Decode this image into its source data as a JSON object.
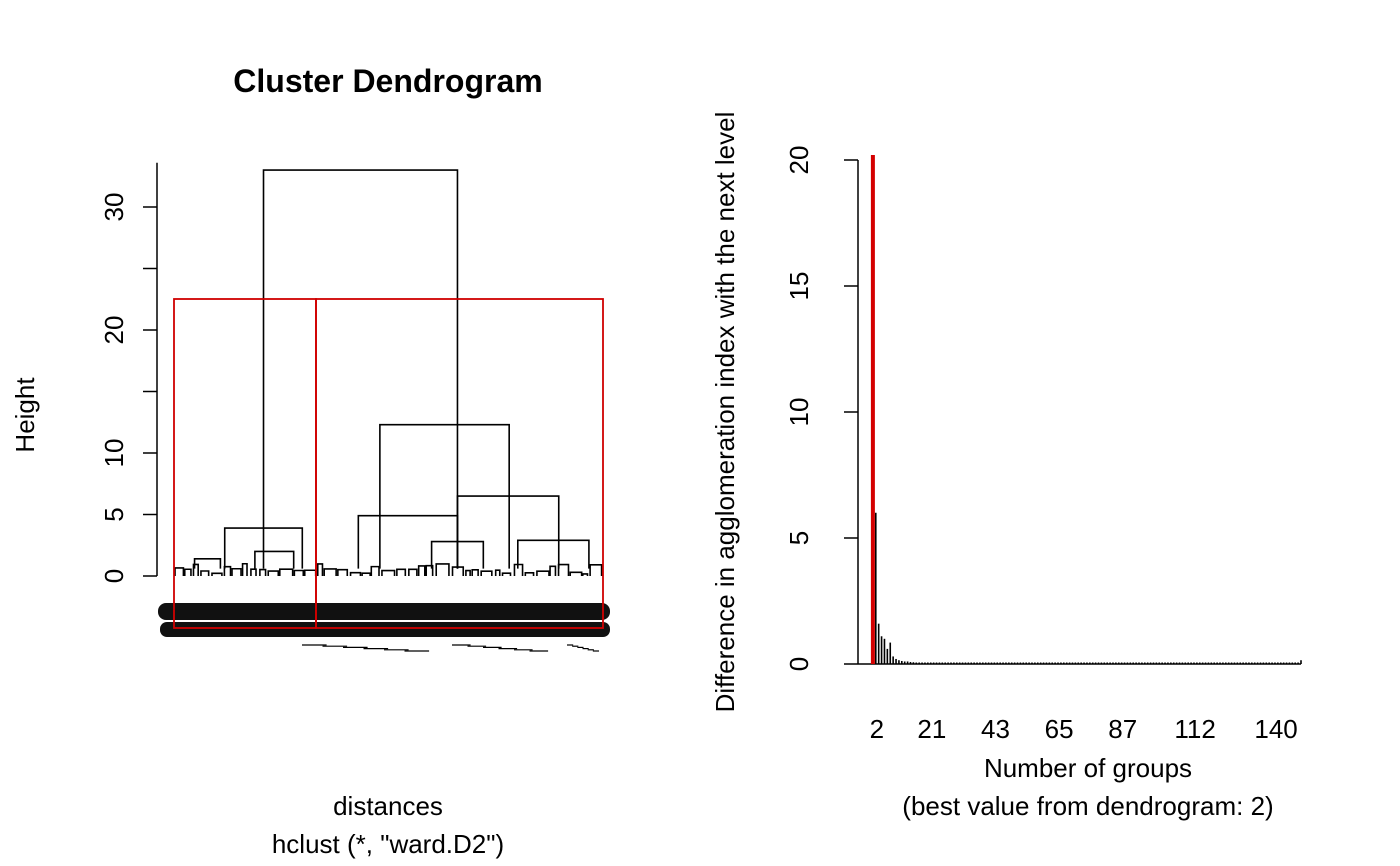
{
  "chart_data": [
    {
      "type": "dendrogram",
      "title": "Cluster Dendrogram",
      "ylabel": "Height",
      "xlabel": "distances",
      "sub": "hclust (*, \"ward.D2\")",
      "ylim": [
        0,
        34
      ],
      "yticks": [
        0,
        5,
        10,
        15,
        20,
        25,
        30
      ],
      "ytick_labels": [
        "0",
        "5",
        "10",
        "",
        "20",
        "",
        "30"
      ],
      "cut_clusters": 2,
      "cut_color": "#d00000",
      "merges": [
        {
          "x1": 0.12,
          "x2": 0.3,
          "h": 3.9
        },
        {
          "x1": 0.21,
          "x2": 0.66,
          "h": 33.0
        },
        {
          "x1": 0.43,
          "x2": 0.66,
          "h": 4.9
        },
        {
          "x1": 0.66,
          "x2": 0.895,
          "h": 6.5
        },
        {
          "x1": 0.48,
          "x2": 0.78,
          "h": 12.3
        },
        {
          "x1": 0.6,
          "x2": 0.72,
          "h": 2.8
        },
        {
          "x1": 0.8,
          "x2": 0.965,
          "h": 2.9
        },
        {
          "x1": 0.05,
          "x2": 0.11,
          "h": 1.4
        },
        {
          "x1": 0.19,
          "x2": 0.28,
          "h": 2.0
        }
      ]
    },
    {
      "type": "bar",
      "ylabel": "Difference in agglomeration index with the next level",
      "xlabel": "Number of groups",
      "sub": "(best value from dendrogram: 2)",
      "ylim": [
        0,
        20.5
      ],
      "yticks": [
        0,
        5,
        10,
        15,
        20
      ],
      "xtick_labels": [
        "2",
        "21",
        "43",
        "65",
        "87",
        "112",
        "140"
      ],
      "xtick_values": [
        2,
        21,
        43,
        65,
        87,
        112,
        140
      ],
      "best_value": 2,
      "best_color": "#d40000",
      "x_range": [
        1,
        150
      ],
      "values": [
        {
          "k": 2,
          "v": 20.2
        },
        {
          "k": 3,
          "v": 6.0
        },
        {
          "k": 4,
          "v": 1.6
        },
        {
          "k": 5,
          "v": 1.1
        },
        {
          "k": 6,
          "v": 1.0
        },
        {
          "k": 7,
          "v": 0.6
        },
        {
          "k": 8,
          "v": 0.85
        },
        {
          "k": 9,
          "v": 0.3
        },
        {
          "k": 10,
          "v": 0.2
        },
        {
          "k": 11,
          "v": 0.15
        },
        {
          "k": 12,
          "v": 0.12
        },
        {
          "k": 13,
          "v": 0.1
        },
        {
          "k": 14,
          "v": 0.1
        },
        {
          "k": 15,
          "v": 0.08
        },
        {
          "k": 16,
          "v": 0.07
        },
        {
          "k": 150,
          "v": 0.15
        }
      ]
    }
  ]
}
